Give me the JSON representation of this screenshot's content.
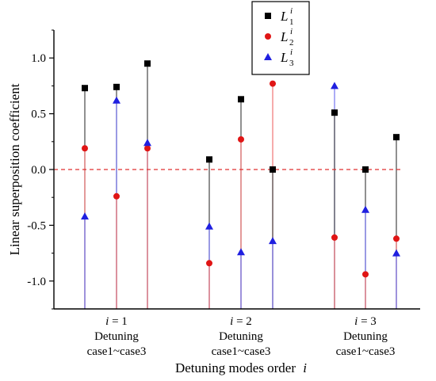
{
  "chart_data": {
    "type": "scatter",
    "title": "",
    "xlabel": "Detuning modes order",
    "xlabel_italic": "i",
    "ylabel": "Linear superposition coefficient",
    "ylim": [
      -1.25,
      1.25
    ],
    "yticks": [
      -1.0,
      -0.5,
      0.0,
      0.5,
      1.0
    ],
    "ytick_labels": [
      "-1.0",
      "-0.5",
      "0.0",
      "0.5",
      "1.0"
    ],
    "reference_line": {
      "y": 0.0,
      "color": "#e03030",
      "style": "dashed"
    },
    "groups": [
      {
        "order_label": "i = 1",
        "line1": "Detuning",
        "line2": "case1~case3"
      },
      {
        "order_label": "i = 2",
        "line1": "Detuning",
        "line2": "case1~case3"
      },
      {
        "order_label": "i = 3",
        "line1": "Detuning",
        "line2": "case1~case3"
      }
    ],
    "x": [
      1,
      2,
      3,
      4,
      5,
      6,
      7,
      8,
      9
    ],
    "series": [
      {
        "name": "L",
        "sup": "i",
        "sub": "1",
        "marker": "square",
        "color": "#000000",
        "stem_color": "#555555",
        "values": [
          0.73,
          0.74,
          0.95,
          0.09,
          0.63,
          0.0,
          0.51,
          0.0,
          0.29
        ]
      },
      {
        "name": "L",
        "sup": "i",
        "sub": "2",
        "marker": "circle",
        "color": "#e01515",
        "stem_color": "#f08080",
        "values": [
          0.19,
          -0.24,
          0.19,
          -0.84,
          0.27,
          0.77,
          -0.61,
          -0.94,
          -0.62
        ]
      },
      {
        "name": "L",
        "sup": "i",
        "sub": "3",
        "marker": "triangle",
        "color": "#1f1fe0",
        "stem_color": "#7f7ff0",
        "values": [
          -0.42,
          0.62,
          0.24,
          -0.51,
          -0.74,
          -0.64,
          0.75,
          -0.36,
          -0.75
        ]
      }
    ],
    "legend_position": "top-right"
  }
}
